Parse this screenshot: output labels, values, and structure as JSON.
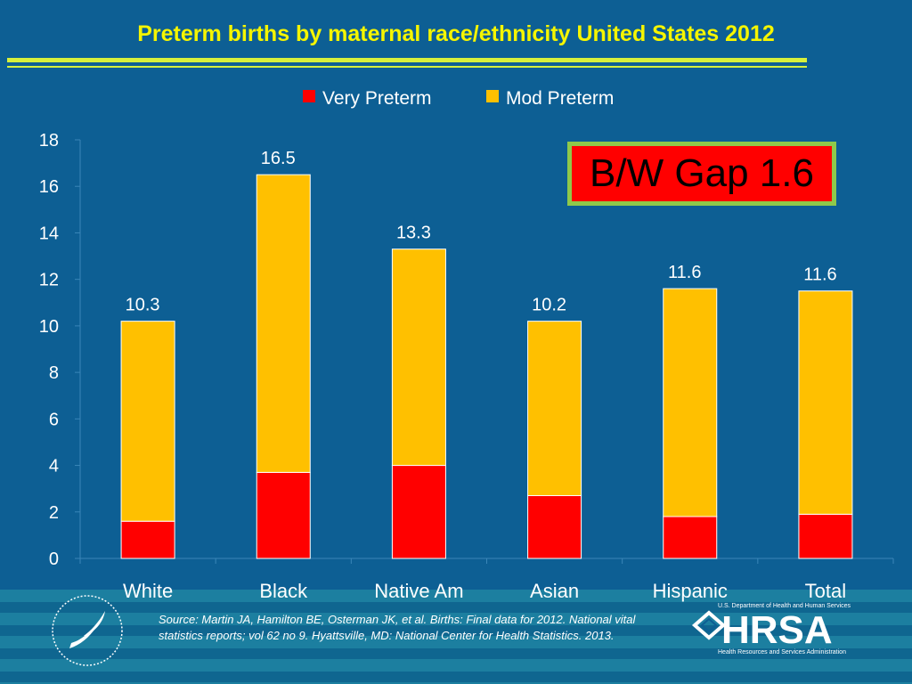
{
  "slide": {
    "title": "Preterm  births by maternal race/ethnicity United States 2012",
    "callout": "B/W Gap  1.6",
    "source": "Source: Martin JA, Hamilton BE, Osterman JK, et al. Births: Final data for 2012. National vital statistics reports; vol 62 no 9. Hyattsville, MD: National Center for Health Statistics. 2013.",
    "hrsa": {
      "dept": "U.S. Department of Health and Human Services",
      "wordmark": "HRSA",
      "tagline": "Health Resources and Services Administration"
    },
    "colors": {
      "background": "#0d5f94",
      "title": "#f5f500",
      "very_preterm": "#ff0000",
      "mod_preterm": "#ffc000"
    }
  },
  "chart_data": {
    "type": "bar",
    "stacked": true,
    "categories": [
      "White",
      "Black",
      "Native Am",
      "Asian",
      "Hispanic",
      "Total"
    ],
    "series": [
      {
        "name": "Very Preterm",
        "values": [
          1.6,
          3.7,
          4.0,
          2.7,
          1.8,
          1.9
        ],
        "color": "#ff0000"
      },
      {
        "name": "Mod Preterm",
        "values": [
          8.6,
          12.8,
          9.3,
          7.5,
          9.8,
          9.6
        ],
        "color": "#ffc000"
      }
    ],
    "totals": [
      "10.3",
      "16.5",
      "13.3",
      "10.2",
      "11.6",
      "11.6"
    ],
    "ylim": [
      0,
      18
    ],
    "yticks": [
      0,
      2,
      4,
      6,
      8,
      10,
      12,
      14,
      16,
      18
    ],
    "grid": false,
    "legend": "top-center"
  }
}
